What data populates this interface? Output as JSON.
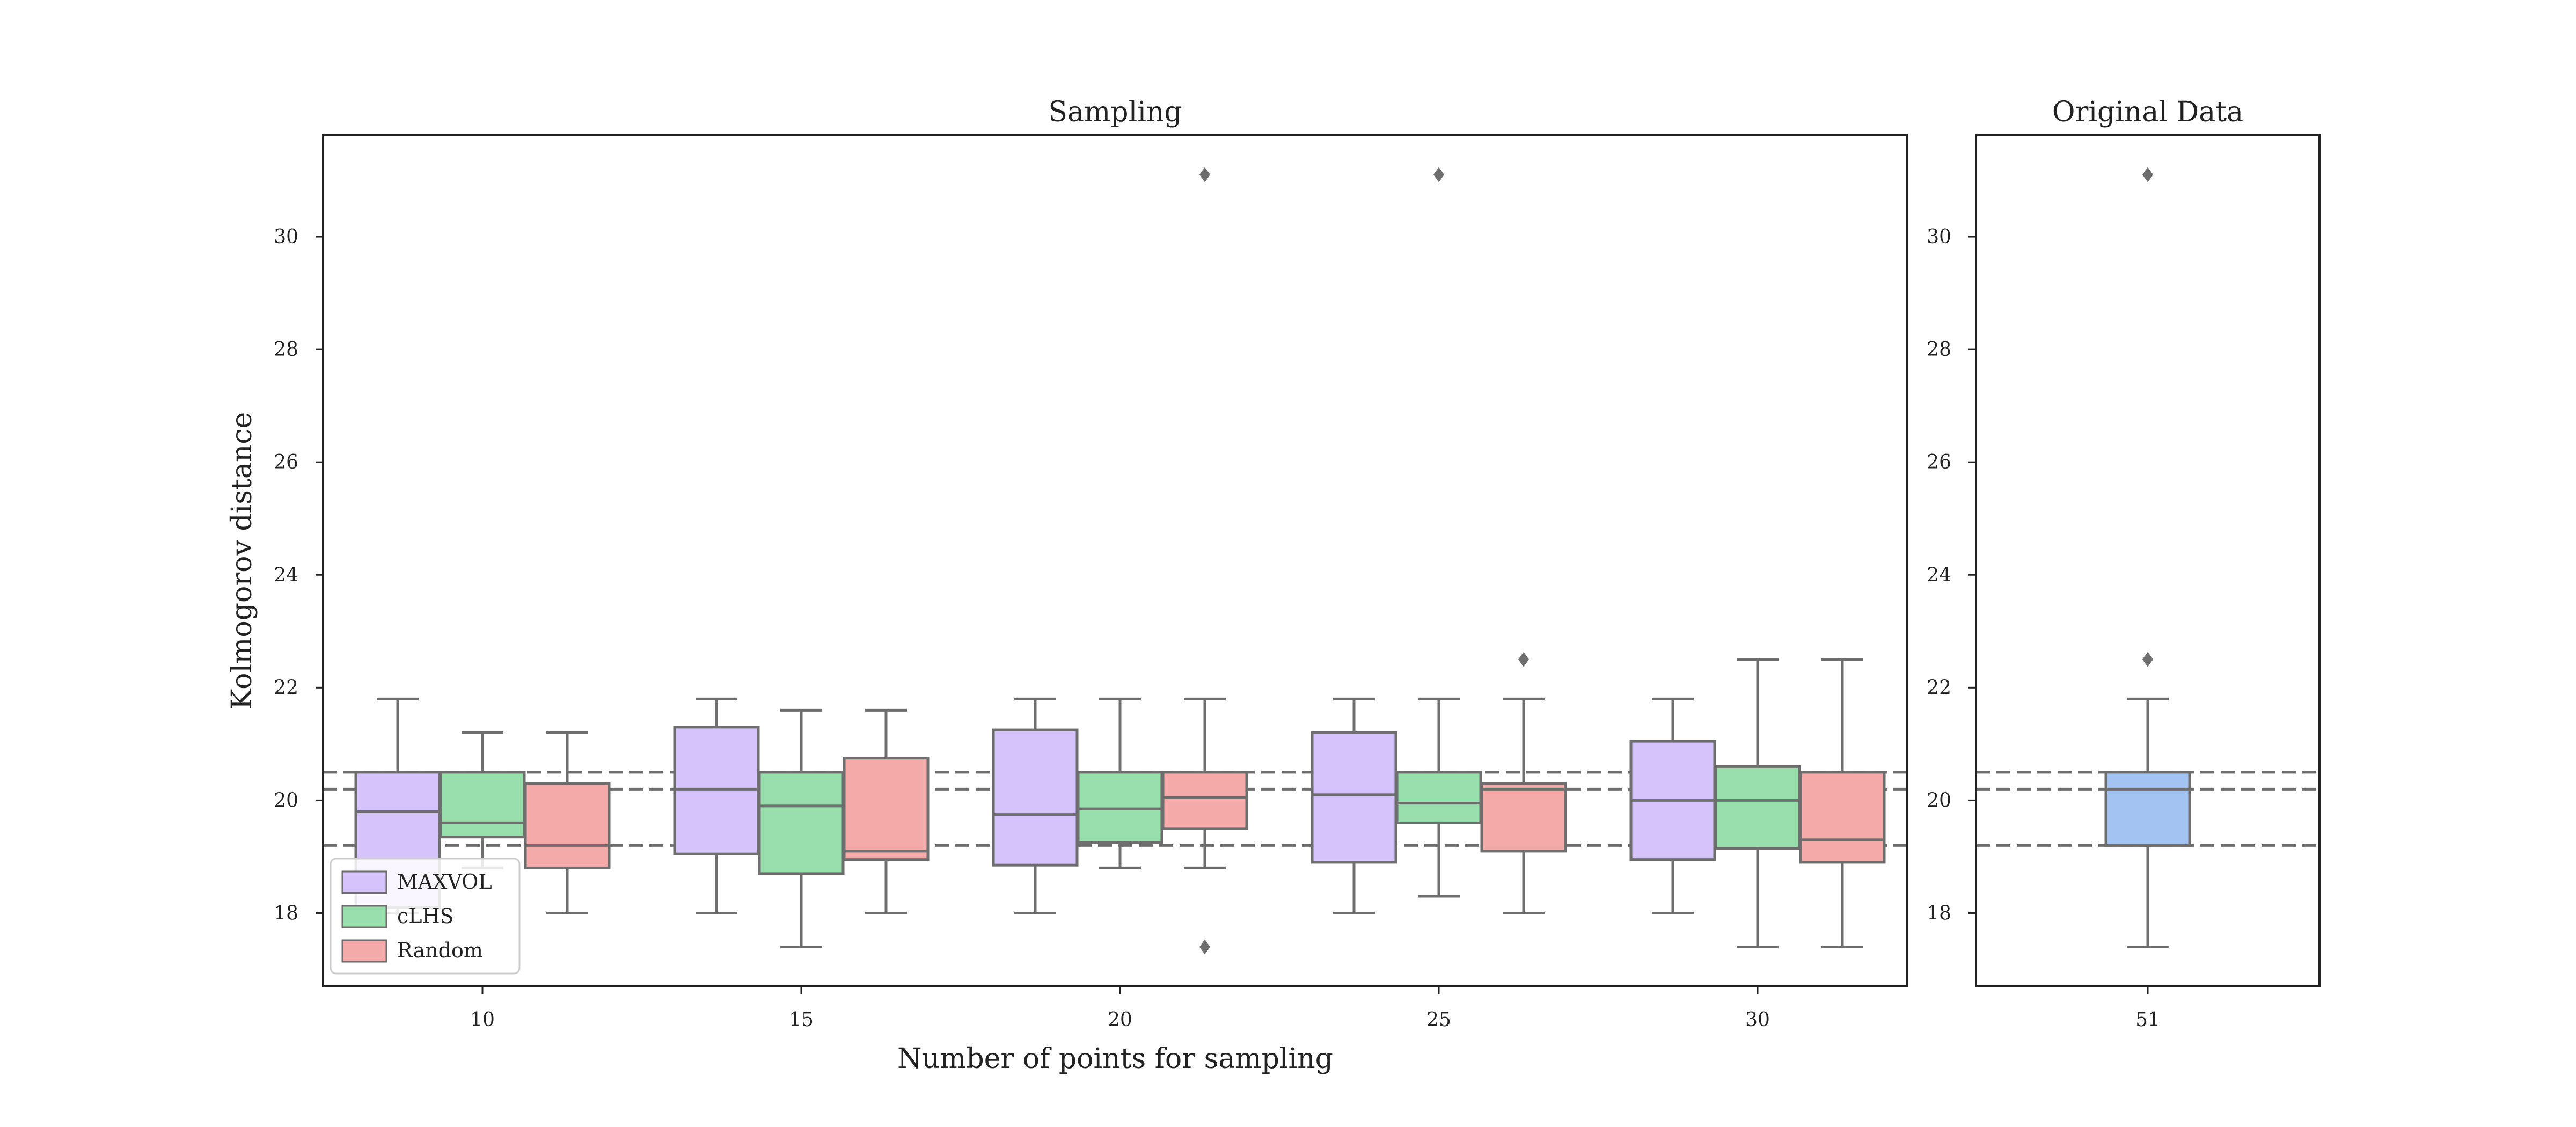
{
  "chart_data": {
    "type": "box",
    "ylabel": "Kolmogorov distance",
    "yticks": [
      18,
      20,
      22,
      24,
      26,
      28,
      30
    ],
    "ylim": [
      16.7,
      31.8
    ],
    "reference_lines": [
      19.2,
      20.2,
      20.5
    ],
    "box_line_color": "#6e6e6e",
    "legend": {
      "position": "lower-left",
      "entries": [
        {
          "name": "MAXVOL",
          "color": "#d4c4fb"
        },
        {
          "name": "cLHS",
          "color": "#98e0ab"
        },
        {
          "name": "Random",
          "color": "#f4aaa8"
        }
      ]
    },
    "panels": [
      {
        "title": "Sampling",
        "xlabel": "Number of points for sampling",
        "categories": [
          "10",
          "15",
          "20",
          "25",
          "30"
        ],
        "series": [
          {
            "name": "MAXVOL",
            "color": "#d4c4fb",
            "boxes": [
              {
                "whislo": 18.0,
                "q1": 18.1,
                "med": 19.8,
                "q3": 20.5,
                "whishi": 21.8,
                "fliers": []
              },
              {
                "whislo": 18.0,
                "q1": 19.05,
                "med": 20.2,
                "q3": 21.3,
                "whishi": 21.8,
                "fliers": []
              },
              {
                "whislo": 18.0,
                "q1": 18.85,
                "med": 19.75,
                "q3": 21.25,
                "whishi": 21.8,
                "fliers": []
              },
              {
                "whislo": 18.0,
                "q1": 18.9,
                "med": 20.1,
                "q3": 21.2,
                "whishi": 21.8,
                "fliers": []
              },
              {
                "whislo": 18.0,
                "q1": 18.95,
                "med": 20.0,
                "q3": 21.05,
                "whishi": 21.8,
                "fliers": []
              }
            ]
          },
          {
            "name": "cLHS",
            "color": "#98e0ab",
            "boxes": [
              {
                "whislo": 18.8,
                "q1": 19.35,
                "med": 19.6,
                "q3": 20.5,
                "whishi": 21.2,
                "fliers": []
              },
              {
                "whislo": 17.4,
                "q1": 18.7,
                "med": 19.9,
                "q3": 20.5,
                "whishi": 21.6,
                "fliers": []
              },
              {
                "whislo": 18.8,
                "q1": 19.25,
                "med": 19.85,
                "q3": 20.5,
                "whishi": 21.8,
                "fliers": []
              },
              {
                "whislo": 18.3,
                "q1": 19.6,
                "med": 19.95,
                "q3": 20.5,
                "whishi": 21.8,
                "fliers": [
                  31.1
                ]
              },
              {
                "whislo": 17.4,
                "q1": 19.15,
                "med": 20.0,
                "q3": 20.6,
                "whishi": 22.5,
                "fliers": []
              }
            ]
          },
          {
            "name": "Random",
            "color": "#f4aaa8",
            "boxes": [
              {
                "whislo": 18.0,
                "q1": 18.8,
                "med": 19.2,
                "q3": 20.3,
                "whishi": 21.2,
                "fliers": []
              },
              {
                "whislo": 18.0,
                "q1": 18.95,
                "med": 19.1,
                "q3": 20.75,
                "whishi": 21.6,
                "fliers": []
              },
              {
                "whislo": 18.8,
                "q1": 19.5,
                "med": 20.05,
                "q3": 20.5,
                "whishi": 21.8,
                "fliers": [
                  31.1,
                  17.4
                ]
              },
              {
                "whislo": 18.0,
                "q1": 19.1,
                "med": 20.2,
                "q3": 20.3,
                "whishi": 21.8,
                "fliers": [
                  22.5
                ]
              },
              {
                "whislo": 17.4,
                "q1": 18.9,
                "med": 19.3,
                "q3": 20.5,
                "whishi": 22.5,
                "fliers": []
              }
            ]
          }
        ]
      },
      {
        "title": "Original Data",
        "xlabel": "",
        "categories": [
          "51"
        ],
        "series": [
          {
            "name": "Original Data",
            "color": "#a3c4f3",
            "boxes": [
              {
                "whislo": 17.4,
                "q1": 19.2,
                "med": 20.2,
                "q3": 20.5,
                "whishi": 21.8,
                "fliers": [
                  31.1,
                  22.5
                ]
              }
            ]
          }
        ]
      }
    ]
  }
}
